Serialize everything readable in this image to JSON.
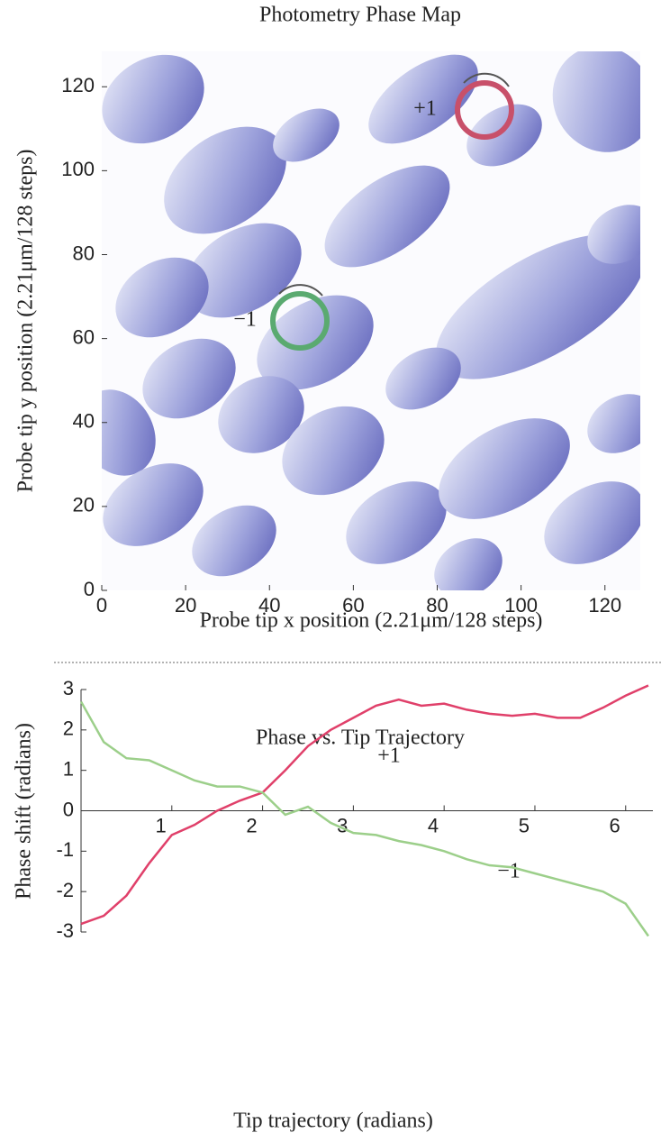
{
  "chart_data": [
    {
      "type": "heatmap",
      "title": "Photometry Phase Map",
      "xlabel": "Probe tip x position (2.21μm/128 steps)",
      "ylabel": "Probe tip y position (2.21μm/128 steps)",
      "xlim": [
        0,
        128
      ],
      "ylim": [
        0,
        128
      ],
      "xticks": [
        0,
        20,
        40,
        60,
        80,
        100,
        120
      ],
      "yticks": [
        0,
        20,
        40,
        60,
        80,
        100,
        120
      ],
      "vortex_labels": [
        "+1",
        "−1"
      ]
    },
    {
      "type": "line",
      "title": "Phase vs. Tip Trajectory",
      "xlabel": "Tip trajectory (radians)",
      "ylabel": "Phase shift (radians)",
      "xlim": [
        0,
        6.3
      ],
      "ylim": [
        -3,
        3
      ],
      "xticks": [
        1,
        2,
        3,
        4,
        5,
        6
      ],
      "yticks": [
        -3,
        -2,
        -1,
        0,
        1,
        2,
        3
      ],
      "x": [
        0,
        0.25,
        0.5,
        0.75,
        1,
        1.25,
        1.5,
        1.75,
        2,
        2.25,
        2.5,
        2.75,
        3,
        3.25,
        3.5,
        3.75,
        4,
        4.25,
        4.5,
        4.75,
        5,
        5.25,
        5.5,
        5.75,
        6,
        6.25
      ],
      "series": [
        {
          "name": "+1",
          "color": "#e0406a",
          "values": [
            -2.8,
            -2.6,
            -2.1,
            -1.3,
            -0.6,
            -0.35,
            0.0,
            0.25,
            0.45,
            1.0,
            1.6,
            2.0,
            2.3,
            2.6,
            2.75,
            2.6,
            2.65,
            2.5,
            2.4,
            2.35,
            2.4,
            2.3,
            2.3,
            2.55,
            2.85,
            3.1
          ]
        },
        {
          "name": "−1",
          "color": "#9ccf8a",
          "values": [
            2.7,
            1.7,
            1.3,
            1.25,
            1.0,
            0.75,
            0.6,
            0.6,
            0.45,
            -0.1,
            0.1,
            -0.3,
            -0.55,
            -0.6,
            -0.75,
            -0.85,
            -1.0,
            -1.2,
            -1.35,
            -1.4,
            -1.55,
            -1.7,
            -1.85,
            -2.0,
            -2.3,
            -3.1
          ]
        }
      ]
    }
  ]
}
